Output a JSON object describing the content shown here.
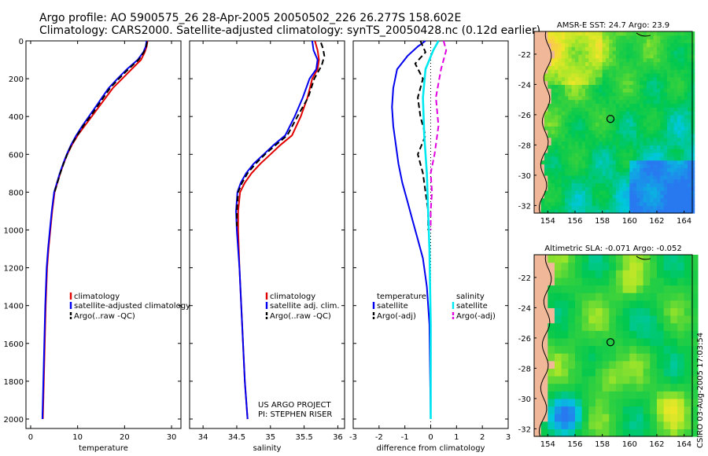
{
  "title": {
    "line1": "Argo profile: AO 5900575_26 28-Apr-2005 20050502_226 26.277S 158.602E",
    "line2": "Climatology: CARS2000. Satellite-adjusted climatology: synTS_20050428.nc (0.12d earlier)"
  },
  "side_credit": "CSIRO 03-Aug-2005 17:03:54",
  "colors": {
    "red": "#e00000",
    "blue": "#0000ee",
    "black": "#000000",
    "cyan": "#00e8f0",
    "magenta": "#e000e0"
  },
  "chart_data": [
    {
      "id": "temperature",
      "type": "line",
      "xlabel": "temperature",
      "ylabel": "",
      "xlim": [
        -1,
        32
      ],
      "ylim": [
        2050,
        0
      ],
      "xticks": [
        0,
        10,
        20,
        30
      ],
      "xtick_labels": [
        "0",
        "10",
        "20",
        "30"
      ],
      "yticks": [
        0,
        200,
        400,
        600,
        800,
        1000,
        1200,
        1400,
        1600,
        1800,
        2000
      ],
      "ytick_labels": [
        "0",
        "200",
        "400",
        "600",
        "800",
        "1000",
        "1200",
        "1400",
        "1600",
        "1800",
        "2000"
      ],
      "legend": [
        "climatology",
        "satellite-adjusted climatology",
        "Argo(..raw -QC)"
      ],
      "series": [
        {
          "name": "climatology",
          "color": "red",
          "dash": "solid",
          "x": [
            24.9,
            24.7,
            24.3,
            23.5,
            21.5,
            19.5,
            17.5,
            16.0,
            14.5,
            13.0,
            11.5,
            10.0,
            8.8,
            7.8,
            7.0,
            6.3,
            5.7,
            5.1,
            4.6,
            4.2,
            3.8,
            3.5,
            3.2,
            3.0,
            2.8,
            2.6
          ],
          "y": [
            0,
            30,
            60,
            100,
            150,
            200,
            250,
            300,
            350,
            400,
            450,
            500,
            550,
            600,
            650,
            700,
            750,
            800,
            900,
            1000,
            1100,
            1200,
            1400,
            1600,
            1800,
            2000
          ]
        },
        {
          "name": "satellite-adjusted climatology",
          "color": "blue",
          "dash": "solid",
          "x": [
            24.7,
            24.5,
            24.0,
            22.8,
            20.5,
            18.5,
            16.6,
            15.2,
            13.8,
            12.4,
            11.0,
            9.7,
            8.6,
            7.7,
            6.9,
            6.2,
            5.6,
            5.0,
            4.5,
            4.1,
            3.7,
            3.4,
            3.1,
            2.9,
            2.7,
            2.5
          ],
          "y": [
            0,
            30,
            60,
            100,
            150,
            200,
            250,
            300,
            350,
            400,
            450,
            500,
            550,
            600,
            650,
            700,
            750,
            800,
            900,
            1000,
            1100,
            1200,
            1400,
            1600,
            1800,
            2000
          ]
        },
        {
          "name": "Argo(..raw -QC)",
          "color": "black",
          "dash": "dash",
          "x": [
            24.8,
            24.6,
            24.1,
            23.0,
            20.8,
            18.8,
            16.9,
            15.5,
            14.1,
            12.7,
            11.2,
            9.9,
            8.7,
            7.8,
            7.0,
            6.3,
            5.7,
            5.1
          ],
          "y": [
            5,
            30,
            60,
            100,
            150,
            200,
            250,
            300,
            350,
            400,
            450,
            500,
            550,
            600,
            650,
            700,
            750,
            800
          ]
        }
      ]
    },
    {
      "id": "salinity",
      "type": "line",
      "xlabel": "salinity",
      "ylabel": "",
      "xlim": [
        33.8,
        36.1
      ],
      "ylim": [
        2050,
        0
      ],
      "xticks": [
        34,
        34.5,
        35,
        35.5,
        36
      ],
      "xtick_labels": [
        "34",
        "34.5",
        "35",
        "35.5",
        "36"
      ],
      "legend": [
        "climatology",
        "satellite adj. clim.",
        "Argo(..raw -QC)"
      ],
      "annotation": [
        "US ARGO PROJECT",
        "PI: STEPHEN RISER"
      ],
      "series": [
        {
          "name": "climatology",
          "color": "red",
          "dash": "solid",
          "x": [
            35.66,
            35.7,
            35.72,
            35.7,
            35.62,
            35.55,
            35.45,
            35.32,
            35.15,
            35.0,
            34.85,
            34.72,
            34.62,
            34.55,
            34.52,
            34.52,
            34.54,
            34.58,
            34.62,
            34.66
          ],
          "y": [
            0,
            50,
            100,
            150,
            200,
            300,
            400,
            500,
            550,
            600,
            650,
            700,
            750,
            800,
            900,
            1000,
            1200,
            1500,
            1800,
            2000
          ]
        },
        {
          "name": "satellite adj. clim.",
          "color": "blue",
          "dash": "solid",
          "x": [
            35.62,
            35.64,
            35.7,
            35.68,
            35.58,
            35.48,
            35.36,
            35.22,
            35.05,
            34.9,
            34.75,
            34.64,
            34.56,
            34.51,
            34.49,
            34.5,
            34.54,
            34.58,
            34.62,
            34.66
          ],
          "y": [
            0,
            50,
            100,
            150,
            200,
            300,
            400,
            500,
            550,
            600,
            650,
            700,
            750,
            800,
            900,
            1000,
            1200,
            1500,
            1800,
            2000
          ]
        },
        {
          "name": "Argo(..raw -QC)",
          "color": "black",
          "dash": "dash",
          "x": [
            35.75,
            35.78,
            35.8,
            35.76,
            35.65,
            35.56,
            35.4,
            35.25,
            35.08,
            34.92,
            34.78,
            34.66,
            34.58,
            34.52,
            34.5,
            34.5
          ],
          "y": [
            10,
            40,
            80,
            130,
            200,
            300,
            400,
            500,
            550,
            600,
            650,
            700,
            750,
            800,
            900,
            980
          ]
        }
      ]
    },
    {
      "id": "difference",
      "type": "line",
      "xlabel": "difference from climatology",
      "ylabel": "",
      "xlim": [
        -3,
        3
      ],
      "ylim": [
        2050,
        0
      ],
      "xticks": [
        -3,
        -2,
        -1,
        0,
        1,
        2,
        3
      ],
      "xtick_labels": [
        "-3",
        "-2",
        "-1",
        "0",
        "1",
        "2",
        "3"
      ],
      "legend": [
        "temperature",
        "satellite",
        "Argo(-adj)",
        "salinity",
        "satellite",
        "Argo(-adj)"
      ],
      "series": [
        {
          "name": "temperature satellite",
          "color": "blue",
          "dash": "solid",
          "x": [
            -0.2,
            -0.5,
            -0.9,
            -1.3,
            -1.45,
            -1.5,
            -1.45,
            -1.35,
            -1.25,
            -1.1,
            -0.9,
            -0.7,
            -0.5,
            -0.3,
            -0.15,
            -0.05,
            0.0
          ],
          "y": [
            0,
            30,
            80,
            150,
            250,
            350,
            450,
            550,
            650,
            750,
            850,
            950,
            1050,
            1150,
            1300,
            1500,
            2000
          ]
        },
        {
          "name": "temperature Argo(-adj)",
          "color": "black",
          "dash": "dash",
          "x": [
            -0.4,
            -0.2,
            -0.6,
            -0.3,
            -0.5,
            -0.4,
            -0.2,
            -0.5,
            -0.3,
            -0.2,
            -0.1,
            -0.1
          ],
          "y": [
            0,
            60,
            120,
            200,
            300,
            400,
            500,
            600,
            700,
            800,
            900,
            1000
          ]
        },
        {
          "name": "salinity satellite",
          "color": "cyan",
          "dash": "solid",
          "x": [
            0.3,
            0.1,
            -0.2,
            -0.3,
            -0.25,
            -0.15,
            -0.1,
            -0.05,
            0.0,
            0.0
          ],
          "y": [
            0,
            50,
            150,
            300,
            500,
            700,
            900,
            1100,
            1500,
            2000
          ]
        },
        {
          "name": "salinity Argo(-adj)",
          "color": "magenta",
          "dash": "dash",
          "x": [
            0.5,
            0.6,
            0.4,
            0.2,
            0.3,
            0.15,
            0.0,
            0.05,
            0.0,
            0.0
          ],
          "y": [
            0,
            50,
            150,
            300,
            450,
            600,
            700,
            800,
            900,
            1000
          ]
        }
      ]
    },
    {
      "id": "sst_map",
      "type": "heatmap",
      "title": "AMSR-E SST: 24.7 Argo: 23.9",
      "xlim": [
        153,
        164.6
      ],
      "ylim": [
        -32.5,
        -20.5
      ],
      "xticks": [
        154,
        156,
        158,
        160,
        162,
        164
      ],
      "xtick_labels": [
        "154",
        "156",
        "158",
        "160",
        "162",
        "164"
      ],
      "yticks": [
        -22,
        -24,
        -26,
        -28,
        -30,
        -32
      ],
      "ytick_labels": [
        "-22",
        "-24",
        "-26",
        "-28",
        "-30",
        "-32"
      ],
      "marker": {
        "lon": 158.6,
        "lat": -26.28
      }
    },
    {
      "id": "sla_map",
      "type": "heatmap",
      "title": "Altimetric SLA: -0.071 Argo: -0.052",
      "xlim": [
        153,
        164.6
      ],
      "ylim": [
        -32.5,
        -20.5
      ],
      "xticks": [
        154,
        156,
        158,
        160,
        162,
        164
      ],
      "xtick_labels": [
        "154",
        "156",
        "158",
        "160",
        "162",
        "164"
      ],
      "yticks": [
        -22,
        -24,
        -26,
        -28,
        -30,
        -32
      ],
      "ytick_labels": [
        "-22",
        "-24",
        "-26",
        "-28",
        "-30",
        "-32"
      ],
      "marker": {
        "lon": 158.6,
        "lat": -26.28
      }
    }
  ]
}
